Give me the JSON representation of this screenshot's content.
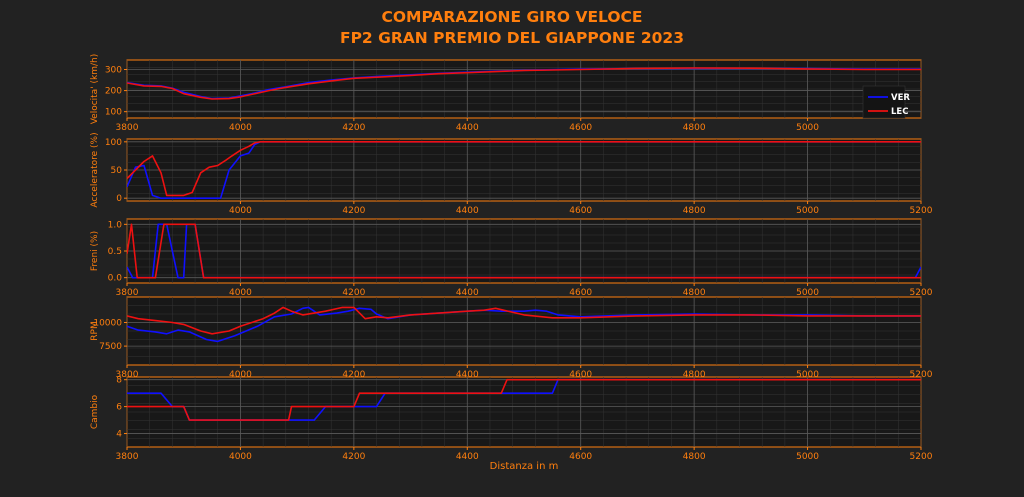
{
  "header": {
    "title_line1": "COMPARAZIONE GIRO VELOCE",
    "title_line2": "FP2 GRAN PREMIO DEL GIAPPONE 2023"
  },
  "colors": {
    "accent": "#ff7f0e",
    "background": "#222222",
    "panel": "#181818",
    "VER": "#1010ff",
    "LEC": "#ee1111"
  },
  "legend": {
    "placement": "right, first panel",
    "entries": [
      "VER",
      "LEC"
    ]
  },
  "chart_data": [
    {
      "type": "line",
      "ylabel": "Velocita' (km/h)",
      "xlabel": "",
      "xlim": [
        3800,
        5200
      ],
      "ylim": [
        70,
        345
      ],
      "xticks": [
        "3800",
        "4000",
        "4200",
        "4400",
        "4600",
        "4800",
        "5000"
      ],
      "yticks": [
        100,
        200,
        300
      ],
      "grid": true,
      "series": [
        {
          "name": "VER",
          "x": [
            3800,
            3830,
            3860,
            3880,
            3900,
            3930,
            3950,
            3980,
            4000,
            4020,
            4050,
            4080,
            4120,
            4160,
            4200,
            4250,
            4300,
            4350,
            4400,
            4450,
            4500,
            4600,
            4700,
            4800,
            4900,
            5000,
            5100,
            5200
          ],
          "values": [
            238,
            225,
            222,
            212,
            192,
            172,
            162,
            165,
            175,
            185,
            205,
            218,
            238,
            250,
            260,
            268,
            275,
            282,
            287,
            292,
            296,
            302,
            304,
            305,
            305,
            304,
            302,
            302
          ]
        },
        {
          "name": "LEC",
          "x": [
            3800,
            3830,
            3860,
            3880,
            3900,
            3930,
            3950,
            3980,
            4000,
            4020,
            4050,
            4080,
            4120,
            4160,
            4200,
            4250,
            4300,
            4350,
            4400,
            4450,
            4500,
            4600,
            4700,
            4800,
            4900,
            5000,
            5100,
            5200
          ],
          "values": [
            236,
            222,
            220,
            210,
            185,
            168,
            160,
            162,
            170,
            182,
            200,
            215,
            232,
            246,
            258,
            265,
            272,
            280,
            285,
            290,
            295,
            300,
            305,
            307,
            306,
            303,
            300,
            300
          ]
        }
      ]
    },
    {
      "type": "line",
      "ylabel": "Acceleratore (%)",
      "xlabel": "",
      "xlim": [
        3800,
        5200
      ],
      "ylim": [
        -5,
        105
      ],
      "xticks": [
        "4000",
        "4200",
        "4400",
        "4600",
        "4800",
        "5000",
        "5200"
      ],
      "yticks": [
        0,
        50,
        100
      ],
      "grid": true,
      "series": [
        {
          "name": "VER",
          "x": [
            3800,
            3815,
            3830,
            3845,
            3860,
            3880,
            3900,
            3930,
            3950,
            3965,
            3980,
            4000,
            4015,
            4025,
            4035,
            5200
          ],
          "values": [
            20,
            55,
            58,
            5,
            0,
            0,
            0,
            0,
            0,
            0,
            50,
            75,
            80,
            95,
            100,
            100
          ]
        },
        {
          "name": "LEC",
          "x": [
            3800,
            3815,
            3830,
            3845,
            3860,
            3870,
            3900,
            3915,
            3930,
            3945,
            3960,
            3975,
            3985,
            4000,
            4015,
            4025,
            4035,
            5200
          ],
          "values": [
            35,
            50,
            65,
            75,
            45,
            5,
            5,
            10,
            45,
            55,
            58,
            68,
            75,
            85,
            92,
            98,
            100,
            100
          ]
        }
      ]
    },
    {
      "type": "line",
      "ylabel": "Freni (%)",
      "xlabel": "",
      "xlim": [
        3800,
        5200
      ],
      "ylim": [
        -0.1,
        1.1
      ],
      "xticks": [
        "3800",
        "4000",
        "4200",
        "4400",
        "4600",
        "4800",
        "5000",
        "5200"
      ],
      "yticks": [
        "0.0",
        "0.5",
        "1.0"
      ],
      "grid": true,
      "series": [
        {
          "name": "VER",
          "x": [
            3800,
            3810,
            3820,
            3830,
            3845,
            3855,
            3870,
            3890,
            3900,
            3905,
            3920,
            3935,
            5190,
            5200
          ],
          "values": [
            0.2,
            0,
            0,
            0,
            0,
            1,
            1,
            0,
            0,
            1,
            1,
            0,
            0,
            0.2
          ]
        },
        {
          "name": "LEC",
          "x": [
            3800,
            3808,
            3818,
            3830,
            3840,
            3850,
            3865,
            3880,
            3920,
            3935,
            5200
          ],
          "values": [
            0.45,
            1,
            0,
            0,
            0,
            0,
            1,
            1,
            1,
            0,
            0
          ]
        }
      ]
    },
    {
      "type": "line",
      "ylabel": "RPM",
      "xlabel": "",
      "xlim": [
        3800,
        5200
      ],
      "ylim": [
        5500,
        12700
      ],
      "xticks": [
        "3800",
        "4000",
        "4200",
        "4400",
        "4600",
        "4800",
        "5000",
        "5200"
      ],
      "yticks": [
        7500,
        10000
      ],
      "grid": true,
      "series": [
        {
          "name": "VER",
          "x": [
            3800,
            3820,
            3850,
            3870,
            3890,
            3910,
            3940,
            3960,
            3990,
            4030,
            4060,
            4090,
            4110,
            4120,
            4140,
            4170,
            4190,
            4210,
            4230,
            4240,
            4260,
            4300,
            4350,
            4400,
            4430,
            4460,
            4500,
            4520,
            4540,
            4560,
            4600,
            4700,
            4800,
            4900,
            5000,
            5100,
            5200
          ],
          "values": [
            9600,
            9200,
            9000,
            8800,
            9200,
            9000,
            8200,
            8000,
            8600,
            9600,
            10600,
            10900,
            11500,
            11600,
            10800,
            11000,
            11200,
            11500,
            11400,
            10900,
            10400,
            10800,
            11000,
            11200,
            11300,
            11200,
            11200,
            11300,
            11200,
            10800,
            10600,
            10800,
            10900,
            10800,
            10800,
            10700,
            10700
          ]
        },
        {
          "name": "LEC",
          "x": [
            3800,
            3820,
            3850,
            3880,
            3900,
            3930,
            3950,
            3980,
            4000,
            4040,
            4060,
            4075,
            4090,
            4110,
            4150,
            4180,
            4200,
            4220,
            4240,
            4260,
            4300,
            4350,
            4400,
            4430,
            4450,
            4500,
            4550,
            4600,
            4700,
            4800,
            4900,
            5000,
            5100,
            5200
          ],
          "values": [
            10700,
            10400,
            10200,
            10000,
            9800,
            9100,
            8800,
            9100,
            9600,
            10400,
            11000,
            11600,
            11200,
            10800,
            11200,
            11600,
            11600,
            10400,
            10600,
            10500,
            10800,
            11000,
            11200,
            11300,
            11500,
            10800,
            10500,
            10500,
            10700,
            10800,
            10800,
            10700,
            10700,
            10700
          ]
        }
      ]
    },
    {
      "type": "line",
      "ylabel": "Cambio",
      "xlabel": "Distanza in m",
      "xlim": [
        3800,
        5200
      ],
      "ylim": [
        3,
        8.2
      ],
      "xticks": [
        "3800",
        "4000",
        "4200",
        "4400",
        "4600",
        "4800",
        "5000",
        "5200"
      ],
      "yticks": [
        4,
        6,
        8
      ],
      "grid": true,
      "series": [
        {
          "name": "VER",
          "x": [
            3800,
            3860,
            3880,
            3900,
            3910,
            4000,
            4100,
            4130,
            4150,
            4200,
            4240,
            4255,
            4265,
            4320,
            4450,
            4460,
            4470,
            4550,
            4560,
            4570,
            5200
          ],
          "values": [
            7,
            7,
            6,
            6,
            5,
            5,
            5,
            5,
            6,
            6,
            6,
            7,
            7,
            7,
            7,
            7,
            7,
            7,
            8,
            8,
            8
          ]
        },
        {
          "name": "LEC",
          "x": [
            3800,
            3880,
            3900,
            3910,
            3920,
            4000,
            4085,
            4090,
            4200,
            4210,
            4220,
            4440,
            4450,
            4460,
            4470,
            4480,
            5200
          ],
          "values": [
            6,
            6,
            6,
            5,
            5,
            5,
            5,
            6,
            6,
            7,
            7,
            7,
            7,
            7,
            8,
            8,
            8
          ]
        }
      ]
    }
  ]
}
